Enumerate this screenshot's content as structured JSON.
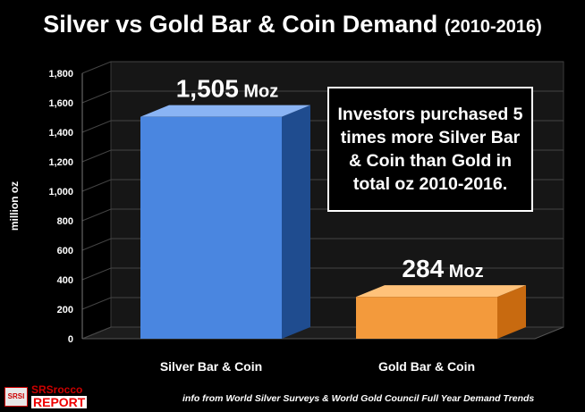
{
  "title": {
    "main": "Silver vs Gold Bar & Coin Demand",
    "period": "(2010-2016)"
  },
  "callout": "Investors purchased 5 times more Silver Bar & Coin than Gold in total oz 2010-2016.",
  "source": "info from World Silver Surveys & World Gold Council Full Year Demand Trends",
  "logo": {
    "badge": "SRSI",
    "line1": "SRSrocco",
    "line2": "REPORT"
  },
  "chart_data": {
    "type": "bar",
    "categories": [
      "Silver Bar & Coin",
      "Gold Bar & Coin"
    ],
    "values": [
      1505,
      284
    ],
    "data_labels": [
      {
        "number": "1,505",
        "unit": "Moz"
      },
      {
        "number": "284",
        "unit": "Moz"
      }
    ],
    "colors": {
      "front": [
        "#4a86e0",
        "#f39a3c"
      ],
      "side": [
        "#1f4c8f",
        "#c86a10"
      ],
      "top": [
        "#8ab4f4",
        "#ffc27a"
      ]
    },
    "ylabel": "million oz",
    "yticks": [
      "0",
      "200",
      "400",
      "600",
      "800",
      "1,000",
      "1,200",
      "1,400",
      "1,600",
      "1,800"
    ],
    "ylim": [
      0,
      1800
    ],
    "grid": true,
    "view": "3d"
  }
}
